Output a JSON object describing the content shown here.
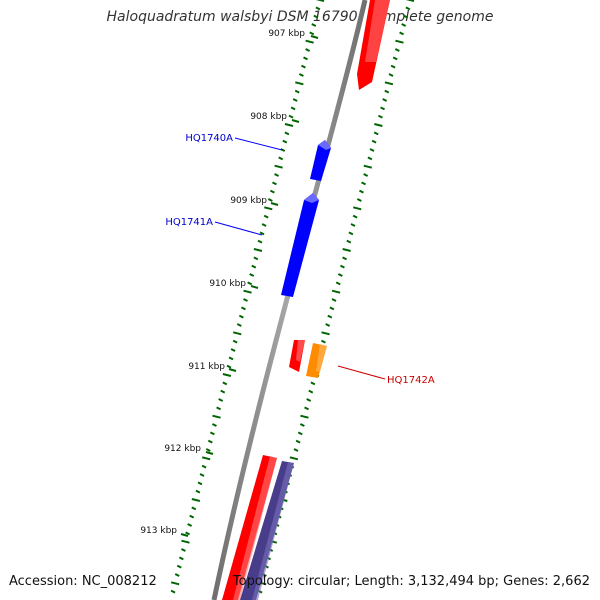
{
  "header": {
    "title": "Haloquadratum walsbyi DSM 16790, complete genome"
  },
  "footer": {
    "accession": "Accession: NC_008212",
    "summary": "Topology: circular; Length: 3,132,494 bp; Genes: 2,662"
  },
  "scale": {
    "unit": "kbp",
    "ticks": [
      "907 kbp",
      "908 kbp",
      "909 kbp",
      "910 kbp",
      "911 kbp",
      "912 kbp",
      "913 kbp"
    ]
  },
  "genes": [
    {
      "label": "HQ1740A",
      "strand": "forward",
      "color": "#0000ff"
    },
    {
      "label": "HQ1741A",
      "strand": "forward",
      "color": "#0000ff"
    },
    {
      "label": "",
      "strand": "reverse",
      "color": "#ff0000"
    },
    {
      "label": "HQ1742A",
      "strand": "reverse",
      "color": "#ff8c00"
    },
    {
      "label": "",
      "strand": "forward",
      "color": "#ff0000"
    },
    {
      "label": "",
      "strand": "forward",
      "color": "#ff0000"
    },
    {
      "label": "",
      "strand": "reverse",
      "color": "#483d8b"
    }
  ],
  "colors": {
    "backbone": "#8a8a8a",
    "tick": "#006400",
    "forward_gene": "#ff0000",
    "blue_gene": "#0000ff",
    "orange_gene": "#ff8c00",
    "purple_gene": "#483d8b",
    "blue_label": "#0000cc",
    "red_label": "#cc0000"
  }
}
